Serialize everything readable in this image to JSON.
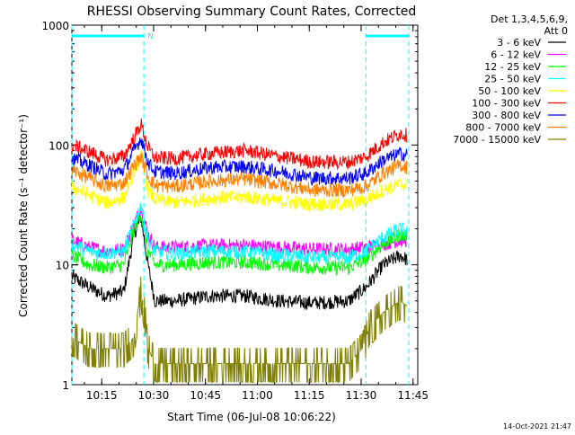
{
  "chart_data": {
    "type": "line",
    "title": "RHESSI Observing Summary Count Rates, Corrected",
    "xlabel": "Start Time (06-Jul-08 10:06:22)",
    "ylabel": "Corrected Count Rate (s⁻¹ detector⁻¹)",
    "y_scale": "log",
    "ylim": [
      1,
      1000
    ],
    "y_ticks": [
      1,
      10,
      100,
      1000
    ],
    "y_tick_labels": [
      "1",
      "10",
      "100",
      "1000"
    ],
    "x_range_minutes": [
      0,
      100
    ],
    "x_ticks": [
      {
        "minute": 8.63,
        "label": "10:15"
      },
      {
        "minute": 23.63,
        "label": "10:30"
      },
      {
        "minute": 38.63,
        "label": "10:45"
      },
      {
        "minute": 53.63,
        "label": "11:00"
      },
      {
        "minute": 68.63,
        "label": "11:15"
      },
      {
        "minute": 83.63,
        "label": "11:30"
      },
      {
        "minute": 98.63,
        "label": "11:45"
      }
    ],
    "legend_header": [
      "Det 1,3,4,5,6,9,",
      "Att 0"
    ],
    "legend_position": "top-right",
    "footer_date": "14-Oct-2021 21:47",
    "night_marker": "N",
    "observing_intervals": [
      [
        0,
        20.8
      ],
      [
        85,
        97.4
      ]
    ],
    "noise_level": 0.06,
    "series": [
      {
        "name": "3 - 6 keV",
        "color": "#000000",
        "x": [
          0,
          5,
          10,
          15,
          18,
          20,
          22,
          24,
          30,
          40,
          50,
          60,
          70,
          80,
          85,
          90,
          95,
          97
        ],
        "y": [
          8.0,
          6.5,
          5.5,
          6.0,
          18,
          25,
          10,
          5.0,
          5.0,
          5.5,
          5.5,
          5.0,
          4.8,
          5.0,
          6.5,
          10,
          12,
          11
        ]
      },
      {
        "name": "6 - 12 keV",
        "color": "#ff00ff",
        "x": [
          0,
          5,
          10,
          15,
          18,
          20,
          22,
          24,
          30,
          40,
          50,
          60,
          70,
          80,
          85,
          90,
          95,
          97
        ],
        "y": [
          16,
          14,
          13,
          13.5,
          22,
          30,
          18,
          14,
          14,
          14.5,
          14.5,
          14,
          13.5,
          13.5,
          14,
          15,
          16,
          16
        ]
      },
      {
        "name": "12 - 25 keV",
        "color": "#00ff00",
        "x": [
          0,
          5,
          10,
          15,
          18,
          20,
          22,
          24,
          30,
          40,
          50,
          60,
          70,
          80,
          85,
          90,
          95,
          97
        ],
        "y": [
          12,
          10,
          9.5,
          10,
          20,
          27,
          13,
          10,
          10,
          10.5,
          10.5,
          10,
          9.5,
          9.5,
          11,
          15,
          18,
          17
        ]
      },
      {
        "name": "25 - 50 keV",
        "color": "#00ffff",
        "x": [
          0,
          5,
          10,
          15,
          18,
          20,
          22,
          24,
          30,
          40,
          50,
          60,
          70,
          80,
          85,
          90,
          95,
          97
        ],
        "y": [
          15,
          13,
          12.5,
          13,
          22,
          32,
          16,
          13,
          12.5,
          13,
          13,
          12,
          11.5,
          11.5,
          13,
          17,
          20,
          19
        ]
      },
      {
        "name": "50 - 100 keV",
        "color": "#ffff00",
        "x": [
          0,
          5,
          10,
          15,
          18,
          20,
          22,
          24,
          30,
          40,
          50,
          60,
          70,
          80,
          85,
          90,
          95,
          97
        ],
        "y": [
          45,
          38,
          33,
          36,
          60,
          80,
          42,
          35,
          33,
          36,
          37,
          34,
          32,
          32,
          35,
          42,
          47,
          46
        ]
      },
      {
        "name": "100 - 300 keV",
        "color": "#ff0000",
        "x": [
          0,
          5,
          10,
          15,
          18,
          20,
          22,
          24,
          30,
          40,
          50,
          60,
          70,
          80,
          85,
          90,
          95,
          97
        ],
        "y": [
          100,
          88,
          75,
          80,
          115,
          150,
          95,
          78,
          77,
          85,
          90,
          80,
          72,
          72,
          80,
          105,
          125,
          120
        ]
      },
      {
        "name": "300 - 800 keV",
        "color": "#0000ff",
        "x": [
          0,
          5,
          10,
          15,
          18,
          20,
          22,
          24,
          30,
          40,
          50,
          60,
          70,
          80,
          85,
          90,
          95,
          97
        ],
        "y": [
          78,
          68,
          57,
          62,
          90,
          115,
          72,
          60,
          58,
          65,
          66,
          60,
          53,
          53,
          58,
          75,
          85,
          82
        ]
      },
      {
        "name": "800 - 7000 keV",
        "color": "#ff8000",
        "x": [
          0,
          5,
          10,
          15,
          18,
          20,
          22,
          24,
          30,
          40,
          50,
          60,
          70,
          80,
          85,
          90,
          95,
          97
        ],
        "y": [
          62,
          53,
          45,
          48,
          68,
          80,
          55,
          46,
          45,
          50,
          52,
          47,
          42,
          42,
          45,
          58,
          68,
          65
        ]
      },
      {
        "name": "7000 - 15000 keV",
        "color": "#808000",
        "x": [
          0,
          5,
          10,
          15,
          18,
          19,
          20,
          21,
          22,
          24,
          30,
          40,
          50,
          60,
          70,
          80,
          84,
          86,
          90,
          95,
          97
        ],
        "y": [
          2.5,
          2.0,
          2.0,
          2.0,
          2.5,
          4.0,
          6.0,
          4.0,
          2.0,
          1.5,
          1.5,
          1.5,
          1.5,
          1.5,
          1.5,
          1.5,
          2.0,
          3.0,
          4.0,
          5.0,
          4.5
        ]
      }
    ]
  }
}
